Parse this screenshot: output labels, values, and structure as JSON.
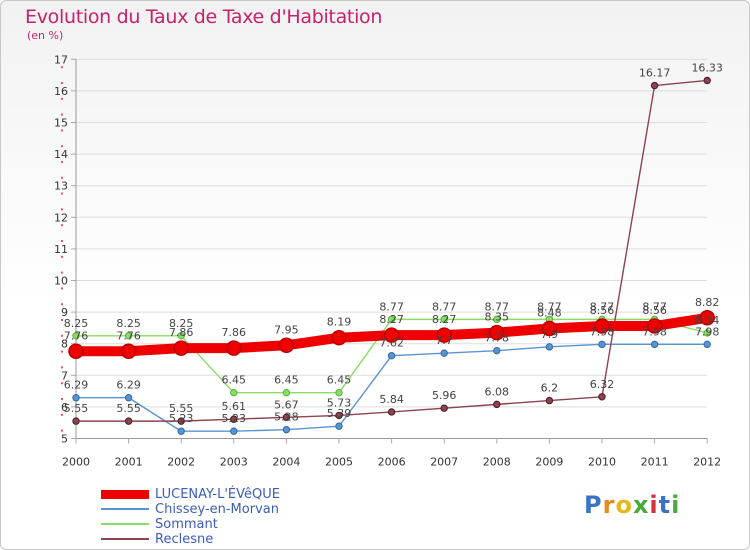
{
  "header": {
    "title": "Evolution du Taux de Taxe d'Habitation",
    "subtitle": "(en %)"
  },
  "logo": {
    "text": "Proxiti"
  },
  "colors": {
    "lucenay": "#ee0000",
    "chissey": "#5a94d0",
    "sommant": "#88dd66",
    "reclesne": "#8b4450",
    "title": "#c8216b",
    "grid": "#dddddd"
  },
  "chart_data": {
    "type": "line",
    "title": "Evolution du Taux de Taxe d'Habitation",
    "ylabel": "(en %)",
    "xlabel": "",
    "ylim": [
      5,
      17
    ],
    "yticks": [
      "5",
      "6",
      "7",
      "8",
      "9",
      "10",
      "11",
      "12",
      "13",
      "14",
      "15",
      "16",
      "17"
    ],
    "x": [
      "2000",
      "2001",
      "2002",
      "2003",
      "2004",
      "2005",
      "2006",
      "2007",
      "2008",
      "2009",
      "2010",
      "2011",
      "2012"
    ],
    "grid": true,
    "legend": "bottom-left",
    "series": [
      {
        "name": "LUCENAY-L'ÉVêQUE",
        "values": [
          7.76,
          7.76,
          7.86,
          7.86,
          7.95,
          8.19,
          8.27,
          8.27,
          8.35,
          8.48,
          8.56,
          8.56,
          8.82
        ],
        "labels": [
          "7.76",
          "7.76",
          "7.86",
          "7.86",
          "7.95",
          "8.19",
          "8.27",
          "8.27",
          "8.35",
          "8.48",
          "8.56",
          "8.56",
          "8.82"
        ]
      },
      {
        "name": "Chissey-en-Morvan",
        "values": [
          6.29,
          6.29,
          5.23,
          5.23,
          5.28,
          5.39,
          7.62,
          7.7,
          7.78,
          7.9,
          7.98,
          7.98,
          7.98
        ],
        "labels": [
          "6.29",
          "6.29",
          "5.23",
          "5.23",
          "5.28",
          "5.39",
          "7.62",
          "7.7",
          "7.78",
          "7.9",
          "7.98",
          "7.98",
          "7.98"
        ]
      },
      {
        "name": "Sommant",
        "values": [
          8.25,
          8.25,
          8.25,
          6.45,
          6.45,
          6.45,
          8.77,
          8.77,
          8.77,
          8.77,
          8.77,
          8.77,
          8.34
        ],
        "labels": [
          "8.25",
          "8.25",
          "8.25",
          "6.45",
          "6.45",
          "6.45",
          "8.77",
          "8.77",
          "8.77",
          "8.77",
          "8.77",
          "8.77",
          "8.34"
        ]
      },
      {
        "name": "Reclesne",
        "values": [
          5.55,
          5.55,
          5.55,
          5.61,
          5.67,
          5.73,
          5.84,
          5.96,
          6.08,
          6.2,
          6.32,
          16.17,
          16.33
        ],
        "labels": [
          "5.55",
          "5.55",
          "5.55",
          "5.61",
          "5.67",
          "5.73",
          "5.84",
          "5.96",
          "6.08",
          "6.2",
          "6.32",
          "16.17",
          "16.33"
        ]
      }
    ]
  }
}
